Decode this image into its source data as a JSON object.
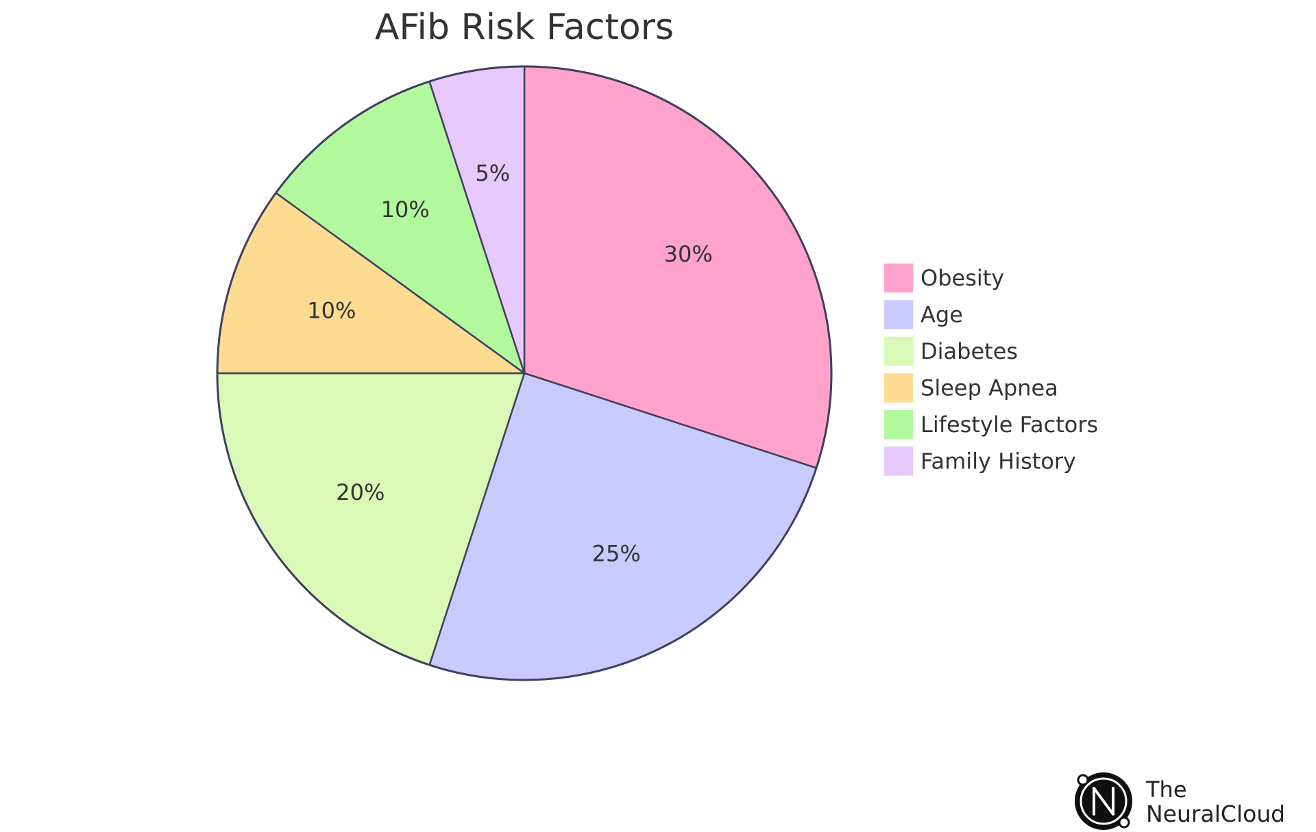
{
  "chart_data": {
    "type": "pie",
    "title": "AFib Risk Factors",
    "categories": [
      "Obesity",
      "Age",
      "Diabetes",
      "Sleep Apnea",
      "Lifestyle Factors",
      "Family History"
    ],
    "values": [
      30,
      25,
      20,
      10,
      10,
      5
    ],
    "labels": [
      "30%",
      "25%",
      "20%",
      "10%",
      "10%",
      "5%"
    ],
    "colors": [
      "#FFA3CC",
      "#C9CBFF",
      "#DAF9B6",
      "#FDDC92",
      "#B2F99D",
      "#E8C9FE"
    ],
    "stroke_color": "#3F3F5F",
    "start": "12 o'clock",
    "direction": "clockwise",
    "legend_position": "right"
  },
  "branding": {
    "line1": "The",
    "line2": "NeuralCloud",
    "logo_icon": "neuralcloud-logo-icon"
  }
}
